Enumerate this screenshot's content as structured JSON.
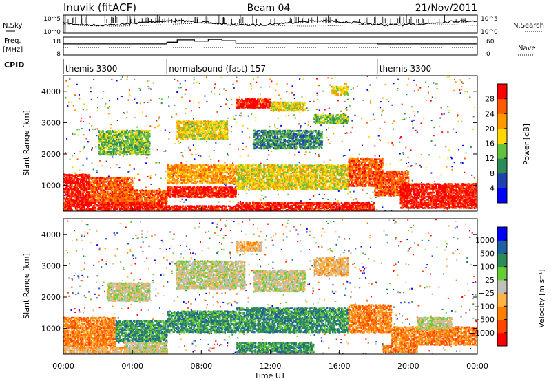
{
  "header": {
    "station": "Inuvik (fitACF)",
    "beam": "Beam 04",
    "date": "21/Nov/2011"
  },
  "chart_data": [
    {
      "type": "line",
      "panel": "noise",
      "left_label": "N.Sky",
      "right_label": "N.Search",
      "left_ticks": [
        "10^5",
        "10^0"
      ],
      "right_ticks": [
        "10^5",
        "10^0"
      ]
    },
    {
      "type": "line",
      "panel": "frequency",
      "left_label_top": "Freq.",
      "left_label_bottom": "[MHz]",
      "left_ticks": [
        "18",
        "8"
      ],
      "right_label": "Nave",
      "right_ticks": [
        "60",
        "0"
      ],
      "freq_steps": [
        {
          "start": 0.0,
          "end": 6.0,
          "level": 0.62
        },
        {
          "start": 6.0,
          "end": 6.6,
          "level": 0.72
        },
        {
          "start": 6.6,
          "end": 7.6,
          "level": 0.85
        },
        {
          "start": 7.6,
          "end": 8.4,
          "level": 0.78
        },
        {
          "start": 8.4,
          "end": 9.2,
          "level": 0.88
        },
        {
          "start": 9.2,
          "end": 10.0,
          "level": 0.8
        },
        {
          "start": 10.0,
          "end": 18.2,
          "level": 0.66
        },
        {
          "start": 18.2,
          "end": 24.0,
          "level": 0.62
        }
      ]
    },
    {
      "type": "table",
      "panel": "cpid",
      "label": "CPID",
      "segments": [
        {
          "start": 0.0,
          "end": 6.0,
          "name": "themis 3300"
        },
        {
          "start": 6.0,
          "end": 18.2,
          "name": "normalsound (fast) 157"
        },
        {
          "start": 18.2,
          "end": 24.0,
          "name": "themis 3300"
        }
      ]
    },
    {
      "type": "heatmap",
      "panel": "power",
      "ylabel": "Slant Range [km]",
      "yticks": [
        1000,
        2000,
        3000,
        4000
      ],
      "ylim": [
        180,
        4500
      ],
      "xlim": [
        0,
        24
      ],
      "colorbar_label": "Power [dB]",
      "colorbar_ticks": [
        "28",
        "24",
        "20",
        "16",
        "12",
        "8",
        "4"
      ],
      "colors": [
        "#0000ff",
        "#2040b0",
        "#2e8b57",
        "#66c040",
        "#ffd700",
        "#ff9900",
        "#ff5a00",
        "#ff0000"
      ],
      "bands": [
        {
          "x0": 0.0,
          "x1": 1.5,
          "r0": 400,
          "r1": 1400,
          "level": 7
        },
        {
          "x0": 1.5,
          "x1": 4.0,
          "r0": 500,
          "r1": 1300,
          "level": 6
        },
        {
          "x0": 3.0,
          "x1": 6.0,
          "r0": 400,
          "r1": 900,
          "level": 6
        },
        {
          "x0": 0.0,
          "x1": 6.0,
          "r0": 180,
          "r1": 500,
          "level": 7
        },
        {
          "x0": 6.0,
          "x1": 10.0,
          "r0": 180,
          "r1": 400,
          "level": 7
        },
        {
          "x0": 6.0,
          "x1": 10.0,
          "r0": 1100,
          "r1": 1700,
          "level": 5
        },
        {
          "x0": 6.0,
          "x1": 10.0,
          "r0": 650,
          "r1": 1000,
          "level": 7
        },
        {
          "x0": 10.0,
          "x1": 16.5,
          "r0": 900,
          "r1": 1700,
          "level": 4
        },
        {
          "x0": 16.5,
          "x1": 18.5,
          "r0": 1000,
          "r1": 1900,
          "level": 6
        },
        {
          "x0": 10.0,
          "x1": 18.0,
          "r0": 200,
          "r1": 500,
          "level": 7
        },
        {
          "x0": 18.0,
          "x1": 20.0,
          "r0": 700,
          "r1": 1500,
          "level": 6
        },
        {
          "x0": 19.5,
          "x1": 24.0,
          "r0": 300,
          "r1": 1100,
          "level": 7
        },
        {
          "x0": 2.0,
          "x1": 5.0,
          "r0": 2000,
          "r1": 2800,
          "level": 3
        },
        {
          "x0": 6.5,
          "x1": 9.5,
          "r0": 2500,
          "r1": 3100,
          "level": 4
        },
        {
          "x0": 10.0,
          "x1": 12.0,
          "r0": 3500,
          "r1": 3800,
          "level": 7
        },
        {
          "x0": 12.0,
          "x1": 14.0,
          "r0": 3400,
          "r1": 3700,
          "level": 4
        },
        {
          "x0": 14.5,
          "x1": 16.5,
          "r0": 3000,
          "r1": 3300,
          "level": 3
        },
        {
          "x0": 15.5,
          "x1": 16.5,
          "r0": 3900,
          "r1": 4200,
          "level": 4
        },
        {
          "x0": 11.0,
          "x1": 15.0,
          "r0": 2200,
          "r1": 2800,
          "level": 2
        }
      ]
    },
    {
      "type": "heatmap",
      "panel": "velocity",
      "ylabel": "Slant Range [km]",
      "yticks": [
        1000,
        2000,
        3000,
        4000
      ],
      "ylim": [
        180,
        4500
      ],
      "xlim": [
        0,
        24
      ],
      "xticks": [
        "00:00",
        "04:00",
        "08:00",
        "12:00",
        "16:00",
        "20:00",
        "00:00"
      ],
      "xlabel": "Time UT",
      "colorbar_label": "Velocity [m s⁻¹]",
      "colorbar_ticks": [
        "1000",
        "500",
        "100",
        "25",
        "−25",
        "−100",
        "−500",
        "−1000"
      ],
      "colors": [
        "#ff0000",
        "#ff4500",
        "#ff7f00",
        "#ffb347",
        "#c0c0b8",
        "#66cc33",
        "#2e8b57",
        "#2060a0",
        "#0000ff"
      ],
      "bands": [
        {
          "x0": 0.0,
          "x1": 3.0,
          "r0": 400,
          "r1": 1400,
          "level": 2
        },
        {
          "x0": 3.0,
          "x1": 6.0,
          "r0": 600,
          "r1": 1300,
          "level": 6
        },
        {
          "x0": 0.0,
          "x1": 6.0,
          "r0": 180,
          "r1": 450,
          "level": 3
        },
        {
          "x0": 6.0,
          "x1": 10.0,
          "r0": 900,
          "r1": 1600,
          "level": 6
        },
        {
          "x0": 10.0,
          "x1": 16.5,
          "r0": 900,
          "r1": 1700,
          "level": 6
        },
        {
          "x0": 16.5,
          "x1": 19.0,
          "r0": 900,
          "r1": 1800,
          "level": 2
        },
        {
          "x0": 19.0,
          "x1": 24.0,
          "r0": 500,
          "r1": 1100,
          "level": 2
        },
        {
          "x0": 3.5,
          "x1": 6.0,
          "r0": 200,
          "r1": 600,
          "level": 4
        },
        {
          "x0": 10.0,
          "x1": 14.5,
          "r0": 250,
          "r1": 600,
          "level": 6
        },
        {
          "x0": 6.5,
          "x1": 10.5,
          "r0": 2300,
          "r1": 3200,
          "level": 4
        },
        {
          "x0": 11.0,
          "x1": 14.0,
          "r0": 2200,
          "r1": 2900,
          "level": 4
        },
        {
          "x0": 14.5,
          "x1": 16.5,
          "r0": 2700,
          "r1": 3300,
          "level": 3
        },
        {
          "x0": 10.0,
          "x1": 11.5,
          "r0": 3500,
          "r1": 3800,
          "level": 3
        },
        {
          "x0": 2.5,
          "x1": 5.0,
          "r0": 1900,
          "r1": 2500,
          "level": 4
        },
        {
          "x0": 20.5,
          "x1": 22.5,
          "r0": 1000,
          "r1": 1400,
          "level": 4
        },
        {
          "x0": 18.5,
          "x1": 20.5,
          "r0": 250,
          "r1": 500,
          "level": 2
        }
      ]
    }
  ]
}
